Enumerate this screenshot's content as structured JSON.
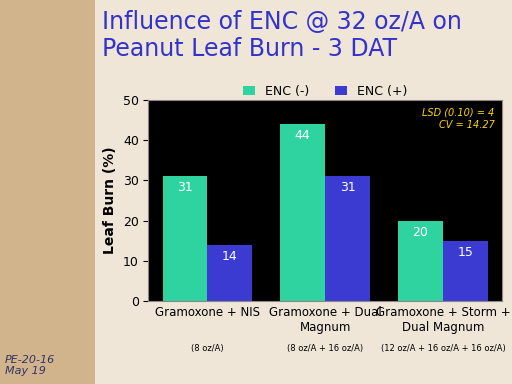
{
  "chart_data": {
    "type": "bar",
    "title": "Influence of ENC @ 32 oz/A on Peanut Leaf Burn - 3 DAT",
    "categories": [
      "Gramoxone + NIS",
      "Gramoxone + Dual Magnum",
      "Gramoxone + Storm + Dual Magnum"
    ],
    "category_notes": [
      "(8 oz/A)",
      "(8 oz/A + 16 oz/A)",
      "(12 oz/A + 16 oz/A + 16 oz/A)"
    ],
    "series": [
      {
        "name": "ENC (-)",
        "color": "#2fd39f",
        "values": [
          31,
          44,
          20
        ]
      },
      {
        "name": "ENC (+)",
        "color": "#3b3bd1",
        "values": [
          14,
          31,
          15
        ]
      }
    ],
    "y_label": "Leaf Burn (%)",
    "ylim": [
      0,
      50
    ],
    "yticks": [
      0,
      10,
      20,
      30,
      40,
      50
    ],
    "legend": "upper center",
    "data_labels": true,
    "annotations": [
      "LSD (0.10) = 4",
      "CV = 14.27"
    ],
    "footer": [
      "PE-20-16",
      "May 19"
    ]
  }
}
